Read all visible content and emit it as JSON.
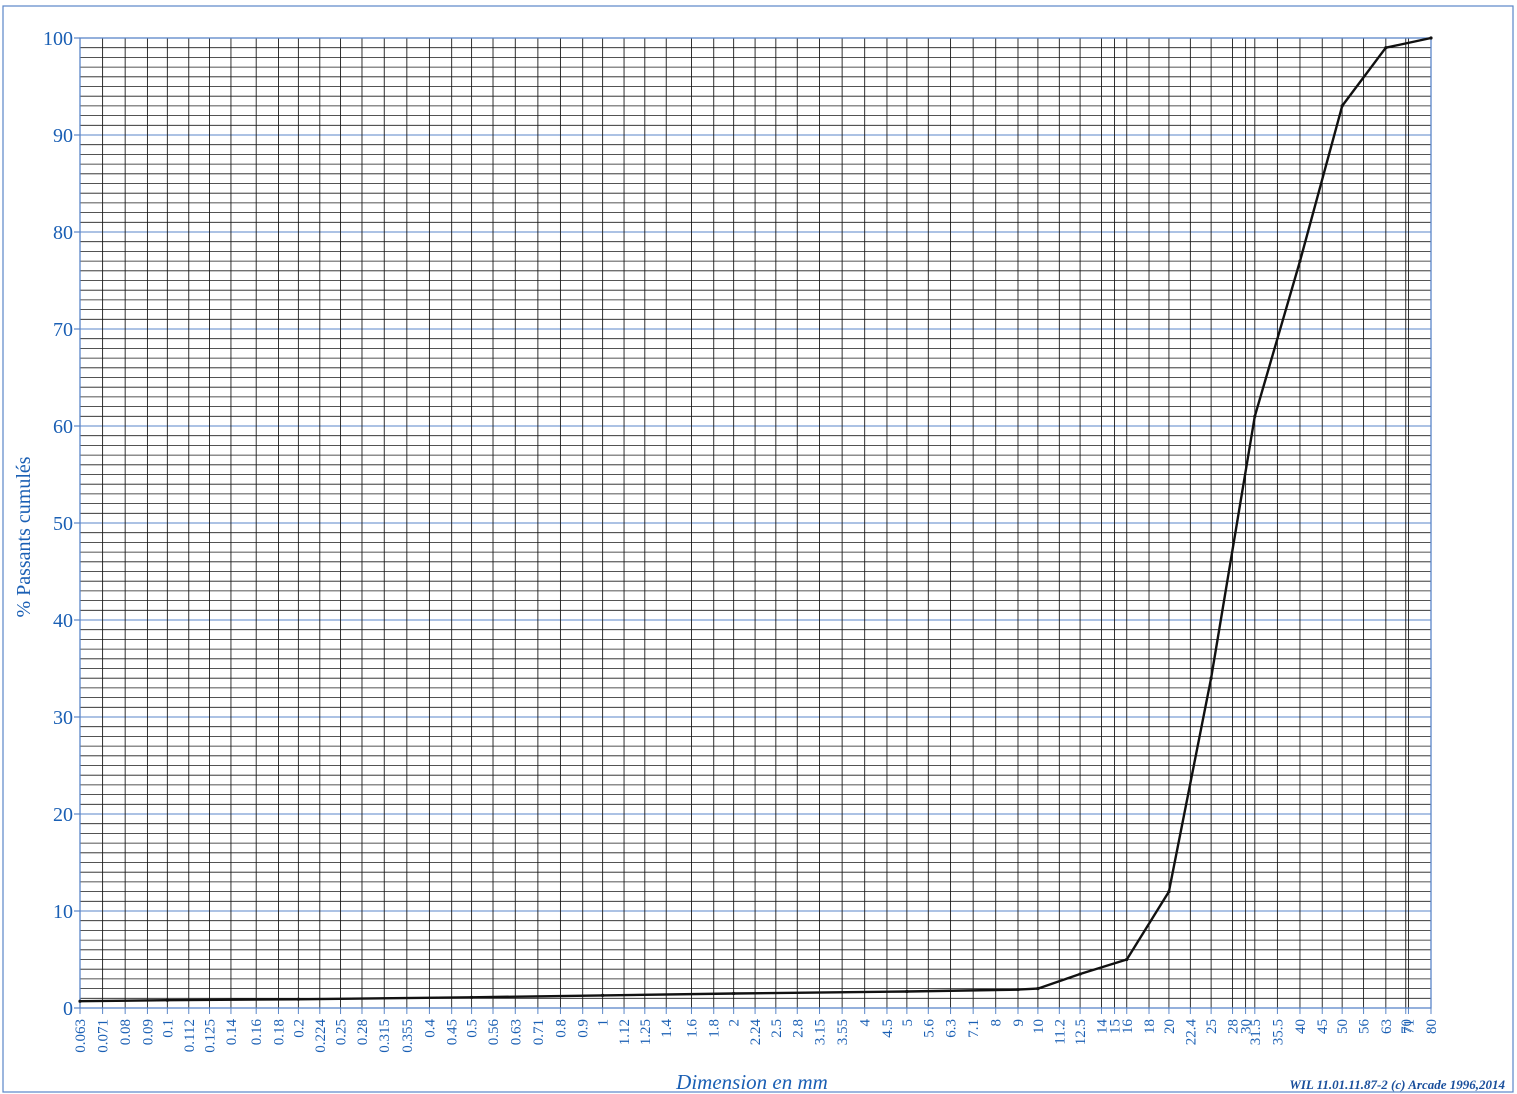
{
  "colors": {
    "axis_text": "#1a5fb4",
    "grid": "#1b1b1b",
    "frame": "#5a86c8",
    "curve": "#111111",
    "credit": "#1a4f9c"
  },
  "credit": "WIL 11.01.11.87-2 (c) Arcade 1996,2014",
  "chart_data": {
    "type": "line",
    "xlabel": "Dimension en mm",
    "ylabel": "% Passants cumulés",
    "x_scale": "log",
    "xlim": [
      0.063,
      80
    ],
    "ylim": [
      0,
      100
    ],
    "grid": true,
    "y_ticks": [
      0,
      10,
      20,
      30,
      40,
      50,
      60,
      70,
      80,
      90,
      100
    ],
    "x_ticks": [
      "0.063",
      "0.071",
      "0.08",
      "0.09",
      "0.1",
      "0.112",
      "0.125",
      "0.14",
      "0.16",
      "0.18",
      "0.2",
      "0.224",
      "0.25",
      "0.28",
      "0.315",
      "0.355",
      "0.4",
      "0.45",
      "0.5",
      "0.56",
      "0.63",
      "0.71",
      "0.8",
      "0.9",
      "1",
      "1.12",
      "1.25",
      "1.4",
      "1.6",
      "1.8",
      "2",
      "2.24",
      "2.5",
      "2.8",
      "3.15",
      "3.55",
      "4",
      "4.5",
      "5",
      "5.6",
      "6.3",
      "7.1",
      "8",
      "9",
      "10",
      "11.2",
      "12.5",
      "14",
      "15",
      "16",
      "18",
      "20",
      "22.4",
      "25",
      "28",
      "30",
      "31.5",
      "35.5",
      "40",
      "45",
      "50",
      "56",
      "63",
      "70",
      "71",
      "80"
    ],
    "series": [
      {
        "x": [
          0.063,
          0.1,
          0.2,
          0.5,
          1,
          2,
          5,
          9,
          10,
          12.5,
          16,
          20,
          25,
          31.5,
          40,
          50,
          63,
          80
        ],
        "y": [
          0.7,
          0.8,
          0.9,
          1.1,
          1.3,
          1.5,
          1.7,
          1.9,
          2,
          3.5,
          5,
          12,
          34,
          61,
          77,
          93,
          99,
          100
        ]
      }
    ]
  }
}
